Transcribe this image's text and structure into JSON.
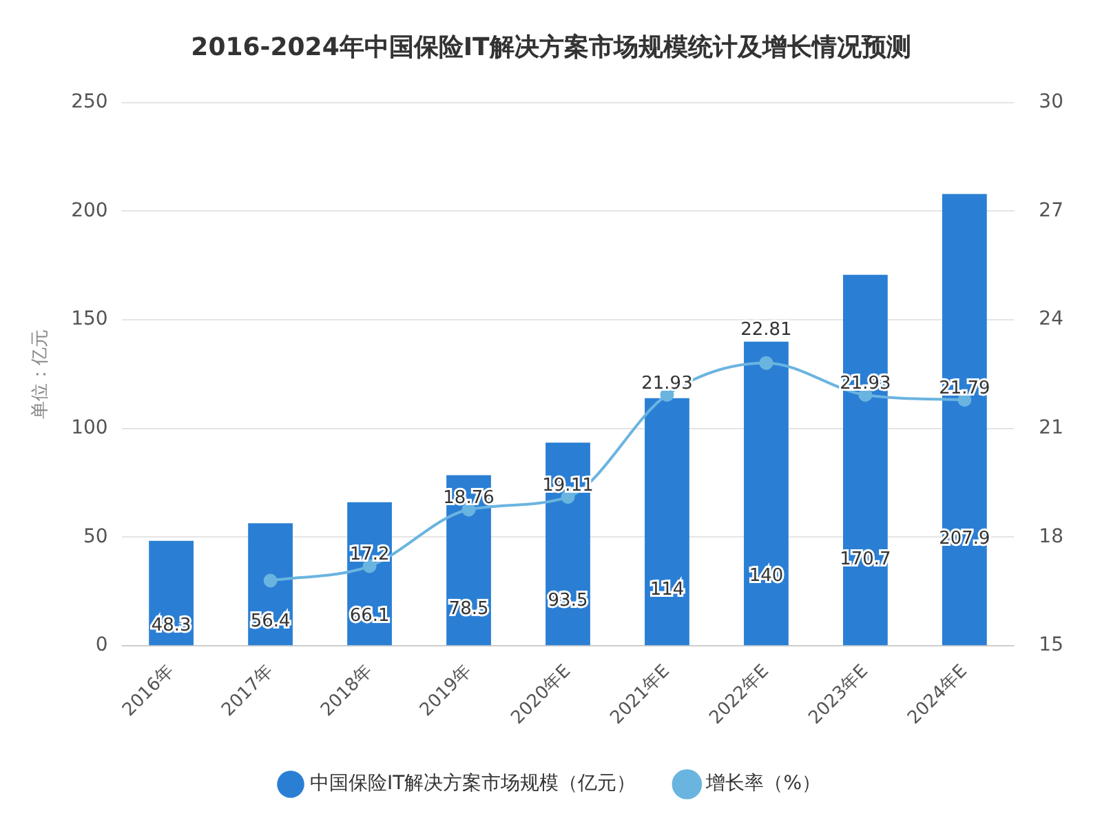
{
  "chart_data": {
    "type": "bar",
    "title": "2016-2024年中国保险IT解决方案市场规模统计及增长情况预测",
    "ylabel": "单位：亿元",
    "categories": [
      "2016年",
      "2017年",
      "2018年",
      "2019年",
      "2020年E",
      "2021年E",
      "2022年E",
      "2023年E",
      "2024年E"
    ],
    "series": [
      {
        "name": "中国保险IT解决方案市场规模（亿元）",
        "color": "#2a7fd4",
        "values": [
          48.3,
          56.4,
          66.1,
          78.5,
          93.5,
          114,
          140,
          170.7,
          207.9
        ],
        "value_labels": [
          "48.3",
          "56.4",
          "66.1",
          "78.5",
          "93.5",
          "114",
          "140",
          "170.7",
          "207.9"
        ]
      },
      {
        "name": "增长率（%）",
        "type": "line",
        "axis": "y2",
        "color": "#6ab4e0",
        "values": [
          null,
          16.8,
          17.2,
          18.76,
          19.11,
          21.93,
          22.81,
          21.93,
          21.79
        ],
        "value_labels": [
          null,
          null,
          "17.2",
          "18.76",
          "19.11",
          "21.93",
          "22.81",
          "21.93",
          "21.79"
        ]
      }
    ],
    "ylim": [
      0,
      250
    ],
    "yticks": [
      0,
      50,
      100,
      150,
      200,
      250
    ],
    "y2lim": [
      15,
      30
    ],
    "y2ticks": [
      15,
      18,
      21,
      24,
      27,
      30
    ],
    "grid": "y",
    "legend": "bottom",
    "marker": "circle",
    "line_style": "solid"
  }
}
